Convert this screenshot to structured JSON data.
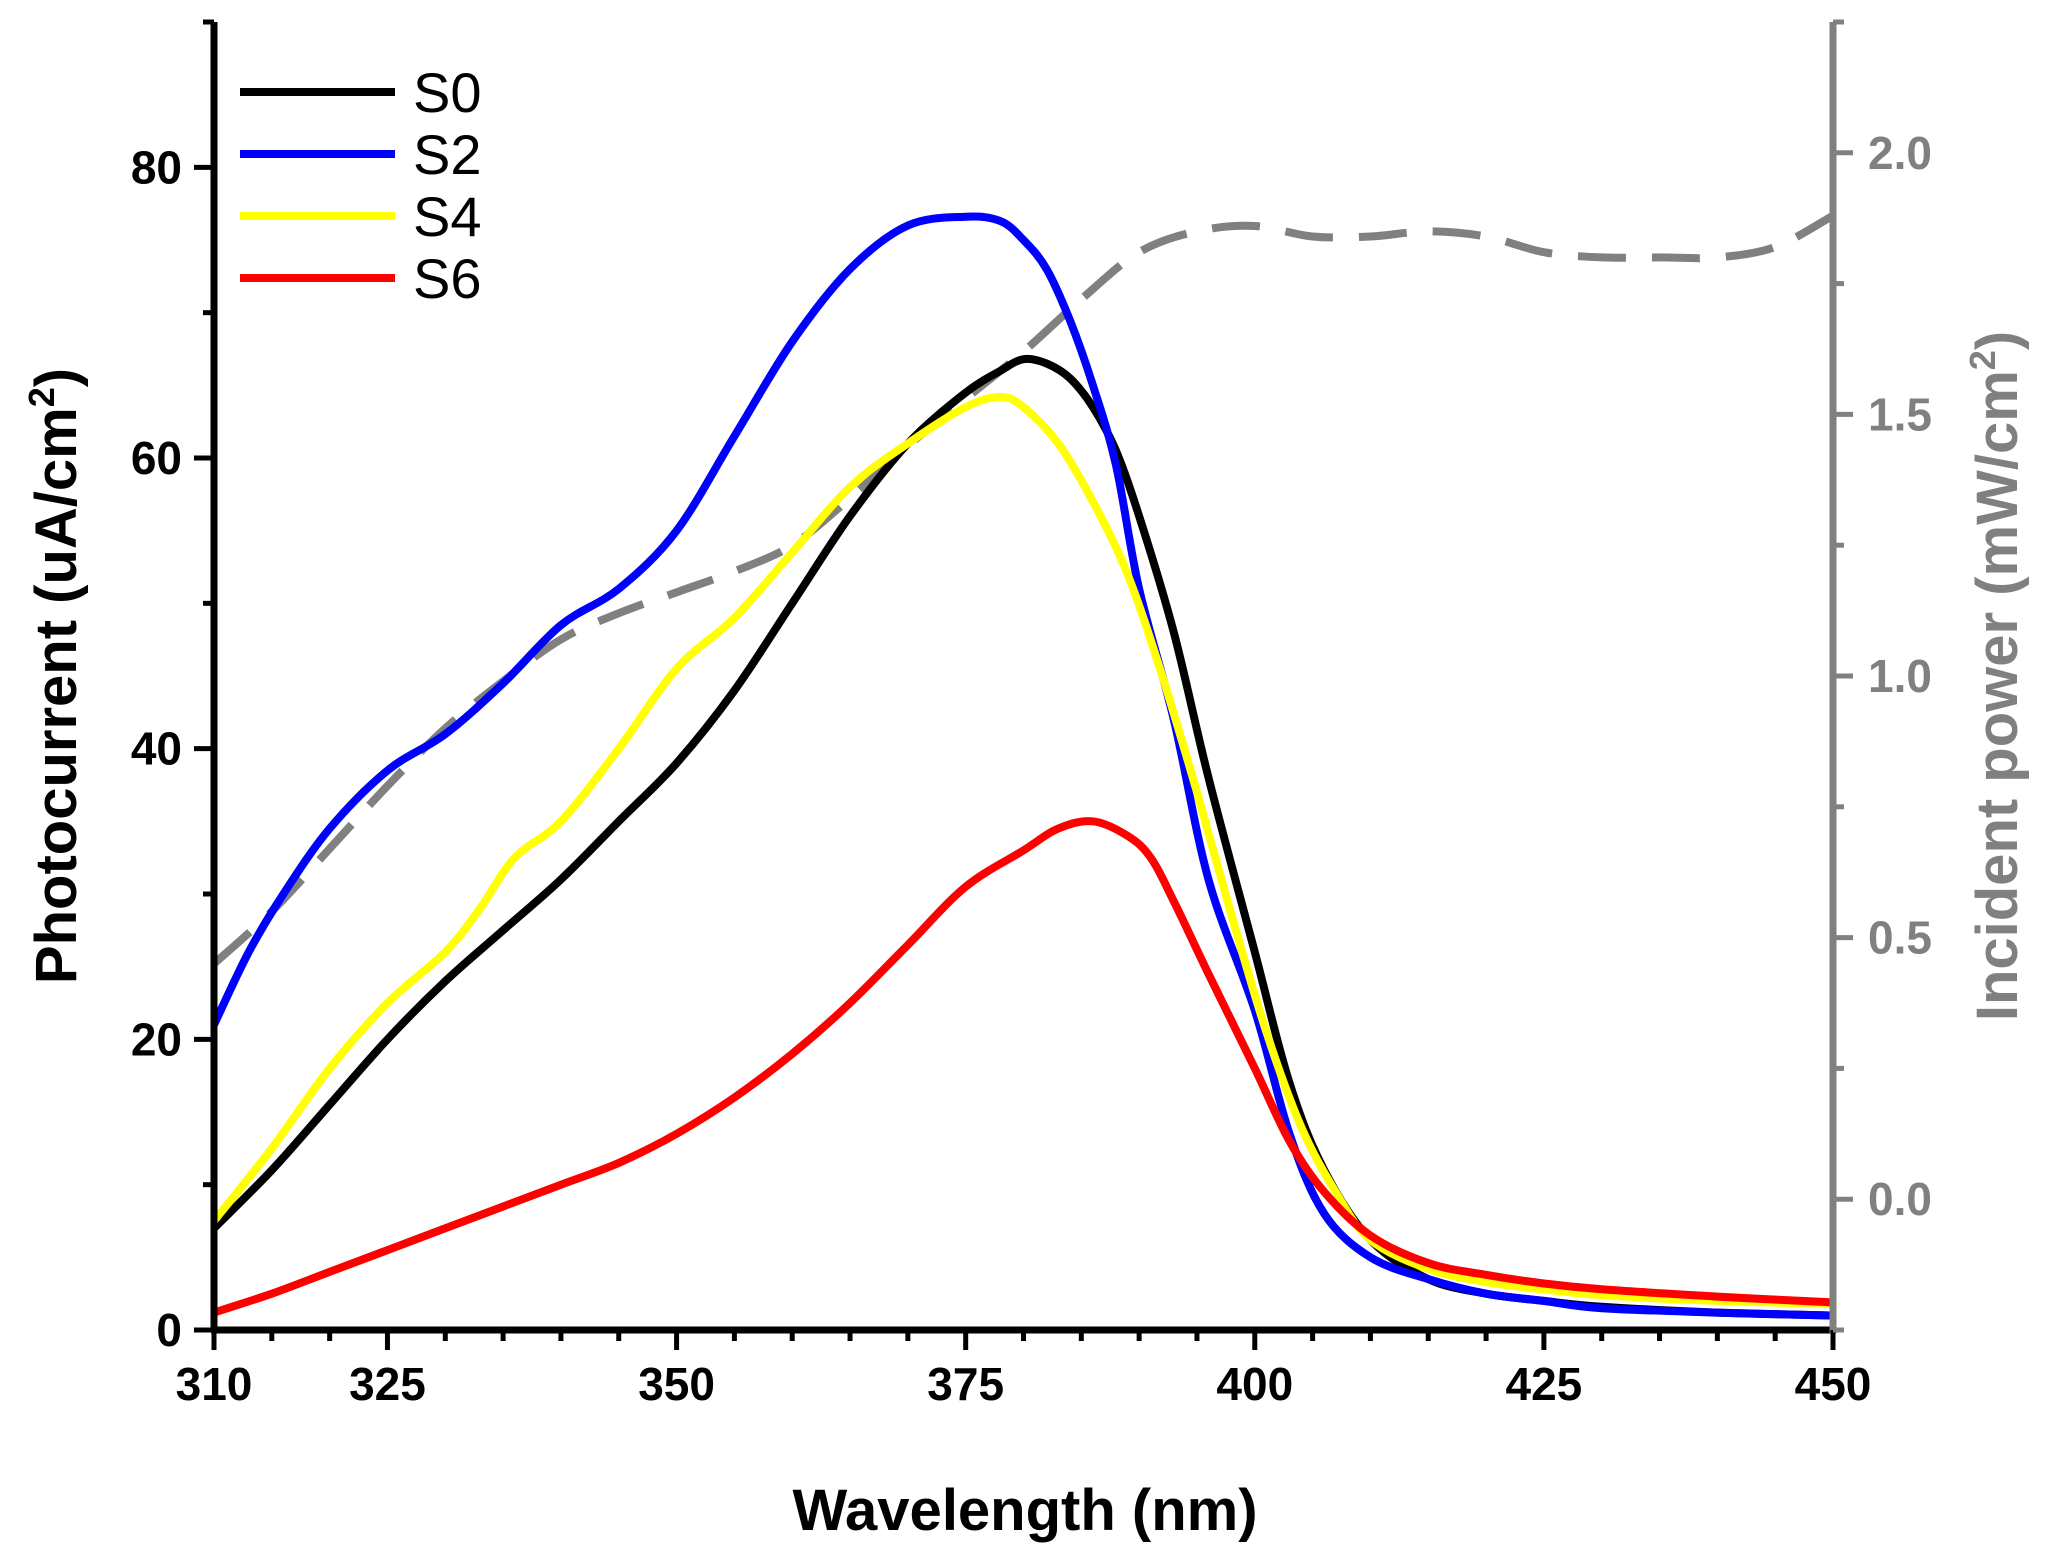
{
  "chart_data": {
    "type": "line",
    "title": "",
    "xlabel": "Wavelength (nm)",
    "ylabel_left": "Photocurrent (uA/cm",
    "ylabel_left_sup": "2",
    "ylabel_left_end": ")",
    "ylabel_right": "Incident power (mW/cm",
    "ylabel_right_sup": "2",
    "ylabel_right_end": ")",
    "xlim": [
      310,
      450
    ],
    "ylim_left": [
      0,
      90
    ],
    "ylim_right": [
      -0.25,
      2.25
    ],
    "x_ticks": [
      310,
      325,
      350,
      375,
      400,
      425,
      450
    ],
    "y_left_ticks": [
      0,
      20,
      40,
      60,
      80
    ],
    "y_right_ticks": [
      "0.0",
      "0.5",
      "1.0",
      "1.5",
      "2.0"
    ],
    "legend_position": "top-left",
    "colors": {
      "S0": "#000000",
      "S2": "#0000ff",
      "S4": "#ffff00",
      "S6": "#ff0000",
      "incident": "#808080",
      "right_axis": "#808080"
    },
    "series": [
      {
        "name": "S0",
        "axis": "left",
        "x": [
          310,
          315,
          320,
          325,
          330,
          335,
          340,
          345,
          350,
          355,
          360,
          365,
          370,
          375,
          378,
          380,
          382,
          384,
          386,
          388,
          390,
          393,
          396,
          400,
          403,
          406,
          410,
          415,
          420,
          425,
          430,
          440,
          450
        ],
        "y": [
          7,
          11,
          15.5,
          20,
          24,
          27.5,
          31,
          35,
          39,
          44,
          50,
          56,
          61,
          64.5,
          66,
          66.8,
          66.5,
          65.5,
          63.5,
          60.5,
          56,
          48,
          38,
          26,
          17,
          11,
          6.2,
          3.5,
          2.5,
          2,
          1.6,
          1.2,
          1
        ]
      },
      {
        "name": "S2",
        "axis": "left",
        "x": [
          310,
          313,
          316,
          320,
          325,
          330,
          335,
          340,
          345,
          350,
          355,
          360,
          365,
          370,
          375,
          378,
          380,
          382,
          384,
          386,
          388,
          390,
          393,
          396,
          400,
          403,
          406,
          410,
          415,
          420,
          425,
          430,
          440,
          450
        ],
        "y": [
          21,
          26,
          30,
          34.5,
          38.5,
          41,
          44.5,
          48.5,
          51,
          55,
          61.5,
          68,
          73,
          76,
          76.6,
          76.3,
          75,
          73,
          69.5,
          65,
          59.5,
          51,
          42,
          31,
          22,
          13.5,
          8,
          5,
          3.5,
          2.5,
          2,
          1.5,
          1.2,
          1
        ]
      },
      {
        "name": "S4",
        "axis": "left",
        "x": [
          310,
          315,
          320,
          325,
          330,
          333,
          336,
          340,
          345,
          350,
          355,
          360,
          365,
          370,
          375,
          378,
          380,
          383,
          386,
          389,
          392,
          395,
          398,
          401,
          404,
          407,
          410,
          415,
          420,
          425,
          430,
          440,
          450
        ],
        "y": [
          7.5,
          12.5,
          18,
          22.5,
          26,
          29,
          32.5,
          35,
          40,
          45.5,
          49,
          53.5,
          58,
          61,
          63.5,
          64.2,
          63.5,
          61,
          57,
          52,
          45,
          37,
          28.5,
          20.5,
          14,
          9.5,
          6.2,
          4.2,
          3.3,
          2.8,
          2.4,
          2,
          1.8
        ]
      },
      {
        "name": "S6",
        "axis": "left",
        "x": [
          310,
          315,
          320,
          325,
          330,
          335,
          340,
          345,
          350,
          355,
          360,
          365,
          370,
          375,
          380,
          383,
          386,
          389,
          391,
          393,
          396,
          400,
          403,
          406,
          410,
          415,
          420,
          425,
          430,
          440,
          450
        ],
        "y": [
          1.2,
          2.5,
          4,
          5.5,
          7,
          8.5,
          10,
          11.5,
          13.5,
          16,
          19,
          22.5,
          26.5,
          30.5,
          33,
          34.5,
          35,
          34,
          32.5,
          29.5,
          24.5,
          18,
          13,
          9.5,
          6.5,
          4.6,
          3.8,
          3.2,
          2.8,
          2.3,
          1.9
        ]
      },
      {
        "name": "Incident power",
        "axis": "right",
        "style": "dashed",
        "x": [
          310,
          315,
          320,
          325,
          330,
          335,
          340,
          345,
          350,
          355,
          360,
          365,
          370,
          375,
          380,
          385,
          390,
          395,
          400,
          405,
          410,
          415,
          420,
          425,
          430,
          435,
          440,
          445,
          450
        ],
        "y": [
          0.45,
          0.55,
          0.67,
          0.79,
          0.9,
          0.99,
          1.07,
          1.12,
          1.16,
          1.2,
          1.25,
          1.34,
          1.44,
          1.53,
          1.62,
          1.72,
          1.81,
          1.85,
          1.86,
          1.84,
          1.84,
          1.85,
          1.84,
          1.81,
          1.8,
          1.8,
          1.8,
          1.82,
          1.88
        ]
      }
    ]
  }
}
